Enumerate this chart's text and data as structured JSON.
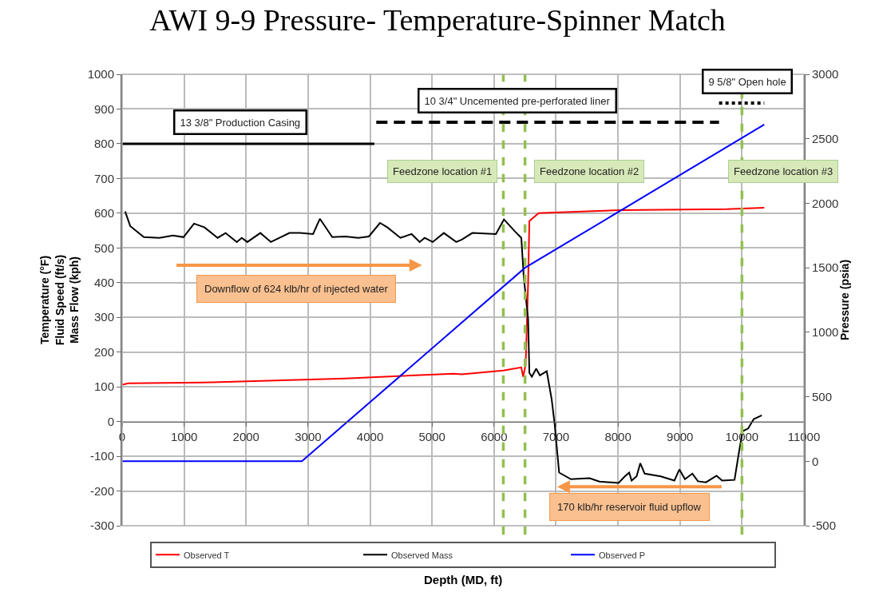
{
  "chart_data": {
    "type": "line",
    "title": "AWI 9-9 Pressure- Temperature-Spinner Match",
    "ylabel": "Temperature (°F)\nFluid Speed (ft/s)\nMass Flow (kph)",
    "y2label": "Pressure (psia)",
    "xlim": [
      0,
      11000
    ],
    "xticks": [
      0,
      1000,
      2000,
      3000,
      4000,
      5000,
      6000,
      7000,
      8000,
      9000,
      10000,
      11000
    ],
    "ylim": [
      -300,
      1000
    ],
    "yticks": [
      -300,
      -200,
      -100,
      0,
      100,
      200,
      300,
      400,
      500,
      600,
      700,
      800,
      900,
      1000
    ],
    "y2lim": [
      -500,
      3000
    ],
    "y2ticks": [
      -500,
      0,
      500,
      1000,
      1500,
      2000,
      2500,
      3000
    ],
    "grid": true,
    "legend": "bottom",
    "marker": "none",
    "series": [
      {
        "name": "Observed T",
        "color": "#ff0000",
        "x": [
          0,
          100,
          1460,
          3600,
          5350,
          5480,
          6150,
          6440,
          6470,
          6510,
          6550,
          6570,
          6720,
          8050,
          9760,
          10360
        ],
        "values": [
          106,
          110,
          113,
          124,
          138,
          136,
          147,
          156,
          129,
          163,
          400,
          577,
          600,
          609,
          612,
          616
        ]
      },
      {
        "name": "Observed Mass",
        "color": "#000000",
        "x": [
          48,
          130,
          350,
          600,
          820,
          990,
          1160,
          1330,
          1540,
          1670,
          1850,
          1930,
          2020,
          2230,
          2400,
          2700,
          2870,
          3080,
          3190,
          3390,
          3600,
          3810,
          3980,
          4160,
          4280,
          4490,
          4670,
          4800,
          4880,
          5010,
          5190,
          5390,
          5480,
          5650,
          6030,
          6160,
          6340,
          6440,
          6480,
          6550,
          6570,
          6610,
          6680,
          6740,
          6850,
          6930,
          6980,
          7050,
          7240,
          7540,
          7700,
          8010,
          8110,
          8180,
          8220,
          8300,
          8360,
          8430,
          8690,
          8910,
          8990,
          9080,
          9200,
          9290,
          9420,
          9590,
          9680,
          9880,
          9950,
          10010,
          10100,
          10190,
          10320
        ],
        "values": [
          605,
          563,
          531,
          529,
          536,
          531,
          570,
          559,
          529,
          543,
          517,
          529,
          517,
          543,
          517,
          543,
          543,
          540,
          584,
          531,
          533,
          529,
          533,
          572,
          559,
          529,
          540,
          517,
          529,
          517,
          543,
          517,
          524,
          543,
          540,
          582,
          547,
          529,
          416,
          294,
          140,
          129,
          152,
          133,
          145,
          64,
          -11,
          -147,
          -166,
          -163,
          -173,
          -177,
          -158,
          -147,
          -170,
          -158,
          -120,
          -150,
          -158,
          -170,
          -138,
          -166,
          -150,
          -172,
          -175,
          -156,
          -170,
          -168,
          -90,
          -28,
          -20,
          7,
          18
        ]
      },
      {
        "name": "Observed P",
        "color": "#0000ff",
        "axis": "y2",
        "x": [
          0,
          2900,
          6500,
          10360
        ],
        "values": [
          0,
          0,
          1500,
          2610
        ]
      },
      {
        "color": "#000000",
        "line_style": "solid",
        "x": [
          0,
          4070
        ],
        "values": [
          800,
          800
        ]
      },
      {
        "color": "#000000",
        "line_style": "dashed",
        "x": [
          4100,
          9630
        ],
        "values": [
          862,
          862
        ]
      },
      {
        "color": "#000000",
        "line_style": "dotted",
        "x": [
          9630,
          10360
        ],
        "values": [
          917,
          917
        ]
      }
    ],
    "ref_lines": [
      {
        "axis": "x",
        "value": 6150,
        "label": "Feedzone location #1",
        "color": "#92c050",
        "line_style": "dashed"
      },
      {
        "axis": "x",
        "value": 6500,
        "label": "Feedzone location #2",
        "color": "#92c050",
        "line_style": "dashed"
      },
      {
        "axis": "x",
        "value": 10000,
        "label": "Feedzone location #3",
        "color": "#92c050",
        "line_style": "dashed"
      }
    ],
    "annotations": [
      {
        "text": "13 3/8\" Production Casing",
        "x": 1900,
        "y": 800
      },
      {
        "text": "10 3/4\" Uncemented pre-perforated liner",
        "x": 6380,
        "y": 862
      },
      {
        "text": "9 5/8\" Open hole",
        "x": 10080,
        "y": 917
      },
      "Downflow of 624 klb/hr of injected water",
      "170 klb/hr reservoir fluid upflow",
      "Depth (MD, ft)"
    ]
  }
}
